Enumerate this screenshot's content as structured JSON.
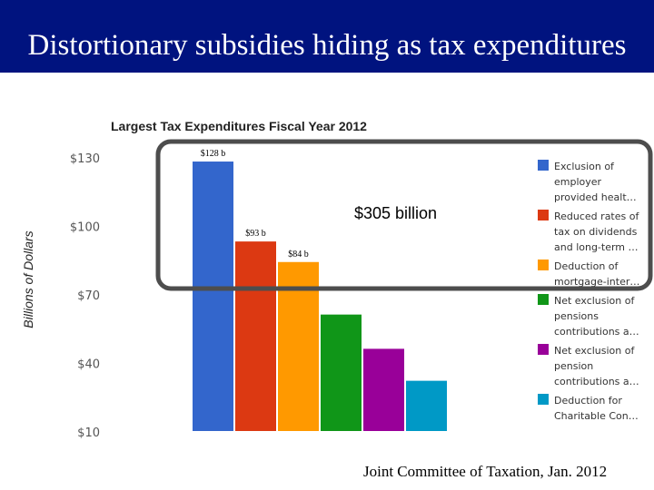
{
  "slide": {
    "title": "Distortionary subsidies hiding as tax expenditures",
    "source": "Joint Committee of Taxation, Jan. 2012"
  },
  "colors": {
    "title_bar": "#00137f",
    "bars": [
      "#3366cc",
      "#dc3912",
      "#ff9900",
      "#109618",
      "#990099",
      "#0099c6"
    ],
    "highlight_box": "#4d4d4d"
  },
  "chart_data": {
    "type": "bar",
    "title": "Largest Tax Expenditures Fiscal Year 2012",
    "ylabel": "Billions of Dollars",
    "ylim": [
      10,
      130
    ],
    "yticks": [
      130,
      100,
      70,
      40,
      10
    ],
    "ytick_labels": [
      "$130",
      "$100",
      "$70",
      "$40",
      "$10"
    ],
    "categories": [
      "Exclusion of employer provided healt…",
      "Reduced rates of tax on dividends and long-term …",
      "Deduction of mortgage-inter…",
      "Net exclusion of pensions contributions a…",
      "Net exclusion of pension contributions a…",
      "Deduction for Charitable Con…"
    ],
    "values": [
      128,
      93,
      84,
      61,
      46,
      32
    ],
    "bar_labels": [
      "$128 b",
      "$93 b",
      "$84 b",
      "",
      "",
      ""
    ],
    "legend": {
      "position": "right",
      "entries": [
        [
          "Exclusion of",
          "employer",
          "provided healt…"
        ],
        [
          "Reduced rates of",
          "tax on dividends",
          "and long-term …"
        ],
        [
          "Deduction of",
          "mortgage-inter…"
        ],
        [
          "Net exclusion of",
          "pensions",
          "contributions a…"
        ],
        [
          "Net exclusion of",
          "pension",
          "contributions a…"
        ],
        [
          "Deduction for",
          "Charitable Con…"
        ]
      ]
    },
    "annotation": "$305 billion"
  }
}
